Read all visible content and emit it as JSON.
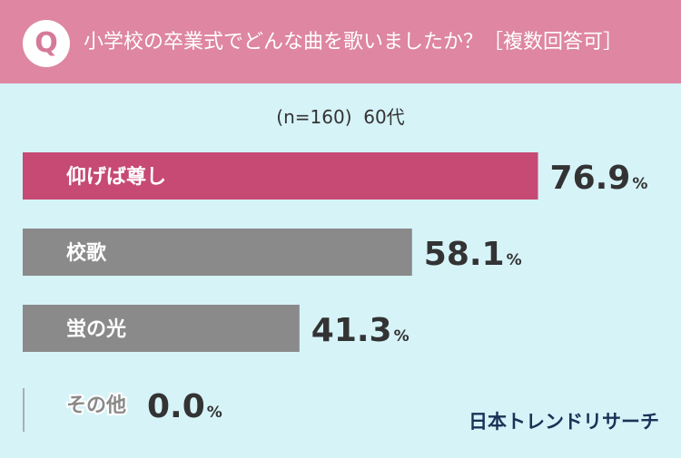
{
  "header": {
    "badge": "Q",
    "question": "小学校の卒業式でどんな曲を歌いましたか？［複数回答可］"
  },
  "subtitle": "(n=160)  60代",
  "brand": "日本トレンドリサーチ",
  "colors": {
    "header_bg": "#de86a2",
    "background": "#d6f3f8",
    "highlight_bar": "#c64a74",
    "default_bar": "#8a8a8a",
    "value_text": "#333333",
    "brand_text": "#1b3258"
  },
  "chart_data": {
    "type": "bar",
    "orientation": "horizontal",
    "categories": [
      "仰げば尊し",
      "校歌",
      "蛍の光",
      "その他"
    ],
    "values": [
      76.9,
      58.1,
      41.3,
      0.0
    ],
    "value_labels": [
      "76.9",
      "58.1",
      "41.3",
      "0.0"
    ],
    "unit": "%",
    "xlim": [
      0,
      100
    ],
    "highlight_index": 0,
    "grid": false,
    "legend": "none"
  }
}
